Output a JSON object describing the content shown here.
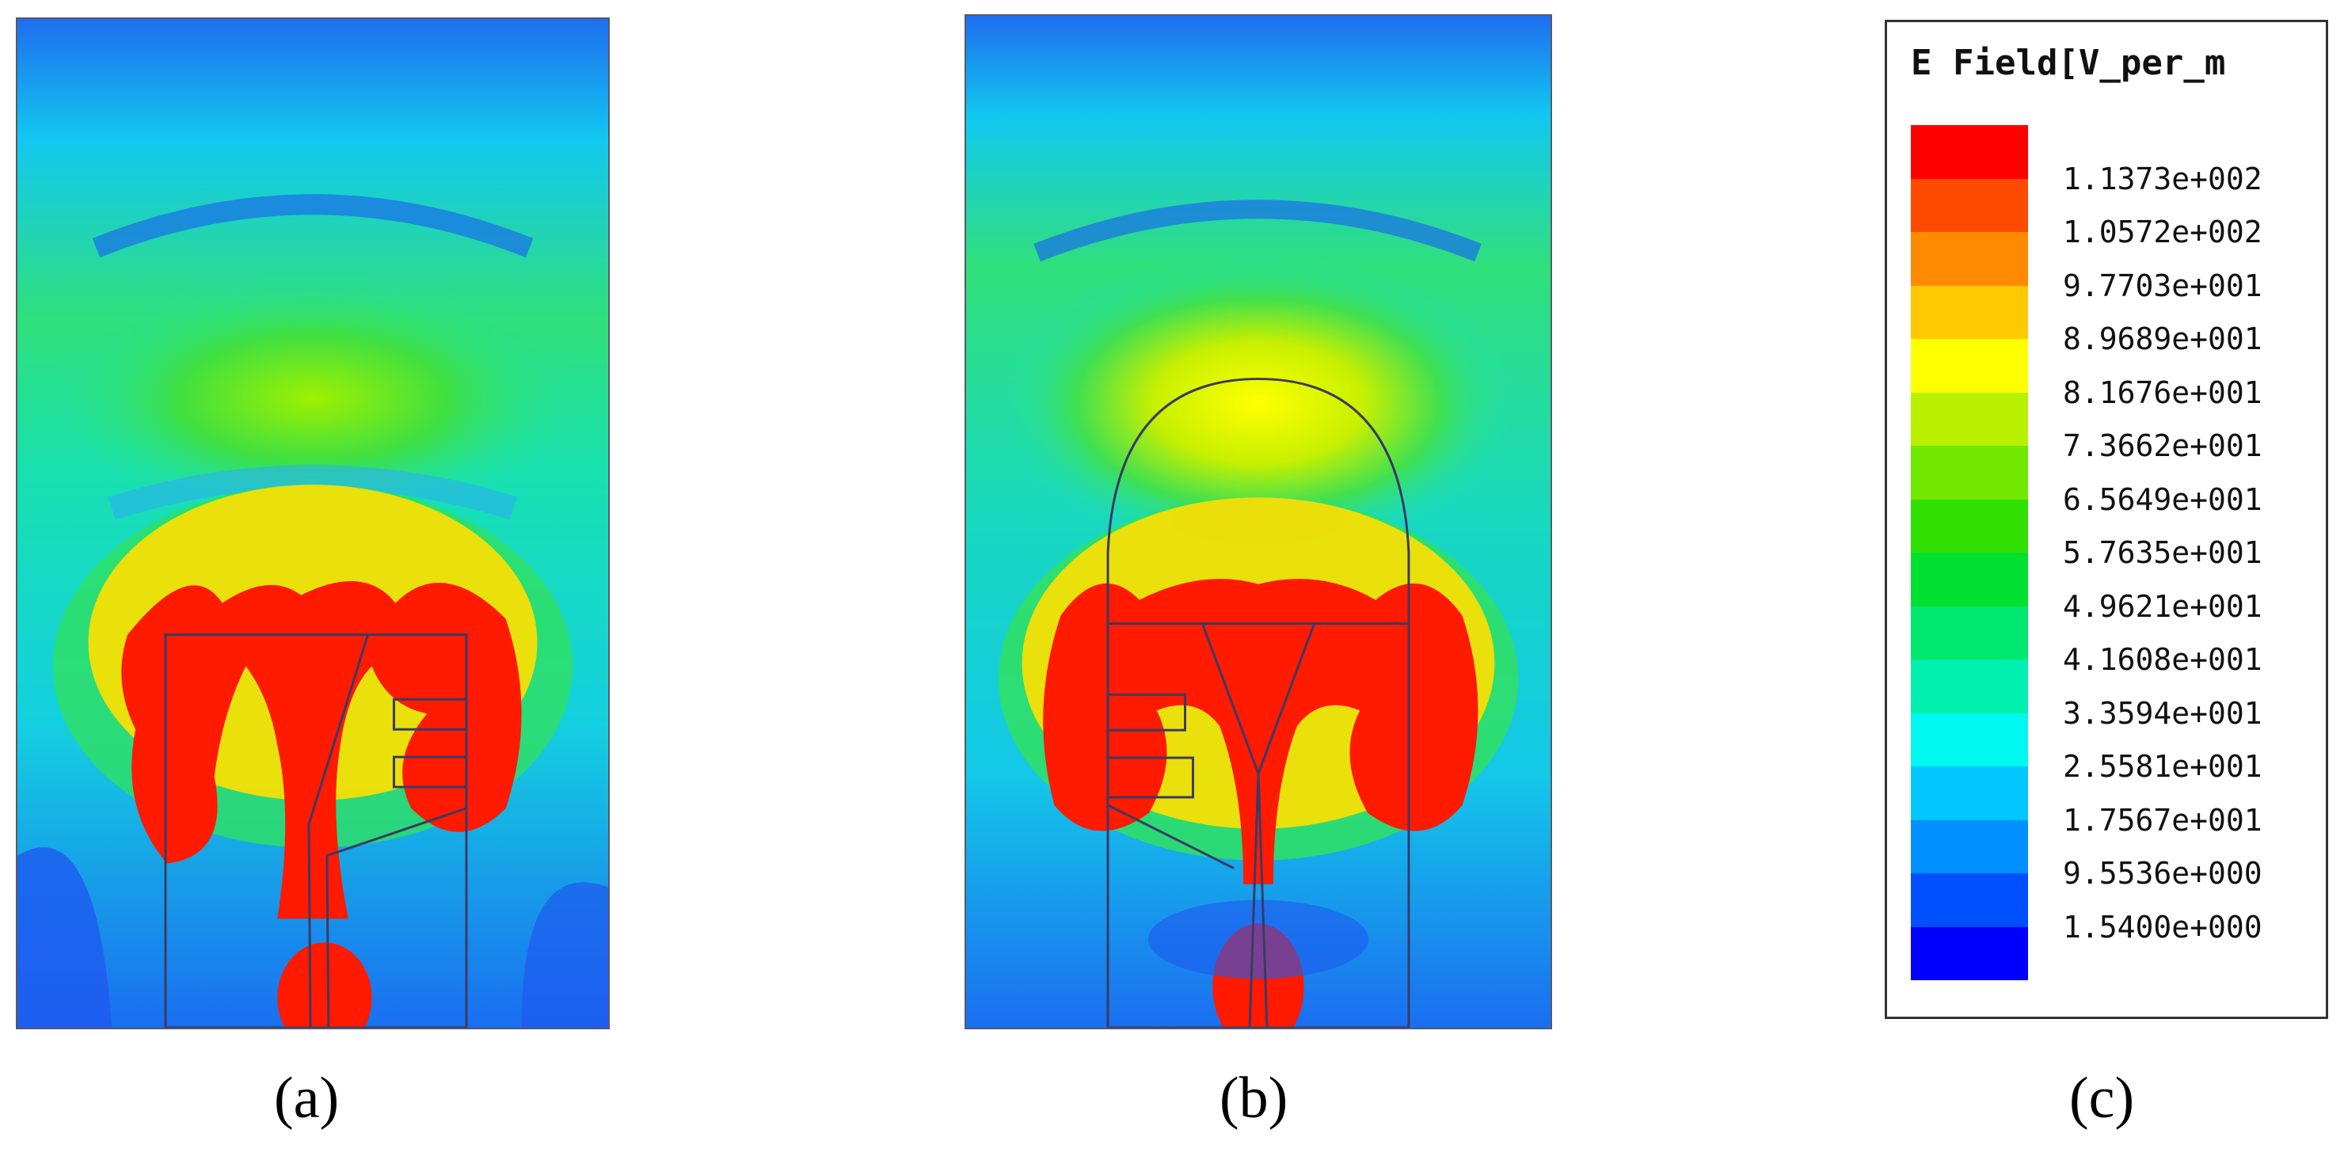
{
  "captions": {
    "a": "(a)",
    "b": "(b)",
    "c": "(c)"
  },
  "legend": {
    "title": "E Field[V_per_m",
    "colors": [
      "#ff0000",
      "#ff4a00",
      "#ff8a00",
      "#ffc800",
      "#ffff00",
      "#b8f000",
      "#70e800",
      "#30e000",
      "#00e030",
      "#00e870",
      "#00f0b0",
      "#00f8f0",
      "#00c8ff",
      "#0090ff",
      "#0050ff",
      "#0000ff"
    ],
    "ticks": [
      "1.1373e+002",
      "1.0572e+002",
      "9.7703e+001",
      "8.9689e+001",
      "8.1676e+001",
      "7.3662e+001",
      "6.5649e+001",
      "5.7635e+001",
      "4.9621e+001",
      "4.1608e+001",
      "3.3594e+001",
      "2.5581e+001",
      "1.7567e+001",
      "9.5536e+000",
      "1.5400e+000"
    ]
  },
  "panels": {
    "a": {
      "label": "E-field distribution (a)"
    },
    "b": {
      "label": "E-field distribution (b)"
    }
  }
}
